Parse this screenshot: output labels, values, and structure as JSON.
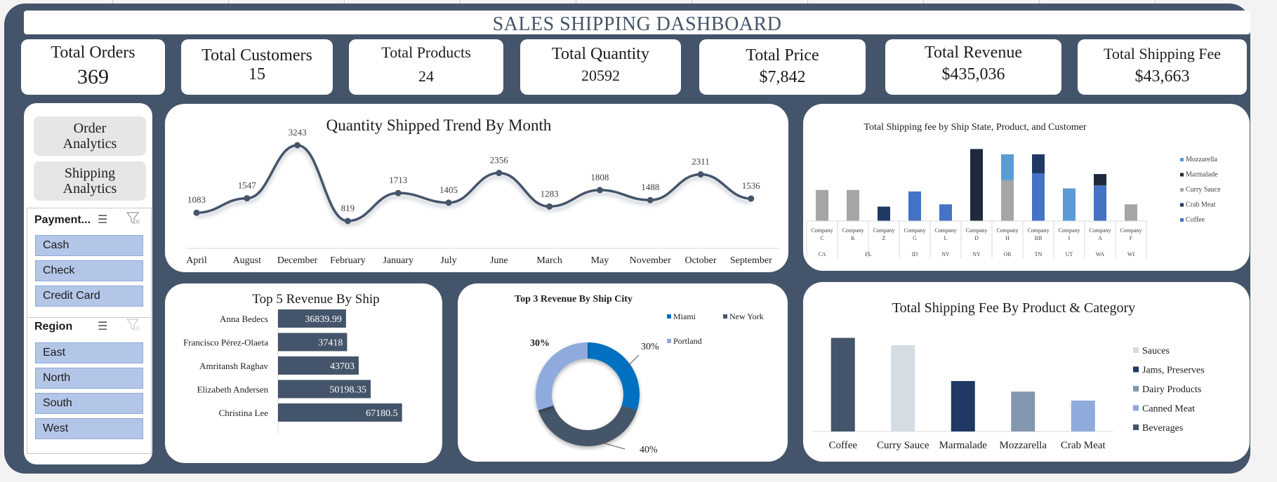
{
  "dashboard": {
    "title": "SALES SHIPPING DASHBOARD"
  },
  "kpis": [
    {
      "label": "Total Orders",
      "value": "369"
    },
    {
      "label": "Total Customers",
      "value": "15"
    },
    {
      "label": "Total Products",
      "value": "24"
    },
    {
      "label": "Total Quantity",
      "value": "20592"
    },
    {
      "label": "Total Price",
      "value": "$7,842"
    },
    {
      "label": "Total Revenue",
      "value": "$435,036"
    },
    {
      "label": "Total Shipping Fee",
      "value": "$43,663"
    }
  ],
  "nav": {
    "order_analytics": "Order Analytics",
    "shipping_analytics": "Shipping Analytics"
  },
  "slicers": {
    "payment": {
      "title": "Payment...",
      "items": [
        "Cash",
        "Check",
        "Credit Card"
      ]
    },
    "region": {
      "title": "Region",
      "items": [
        "East",
        "North",
        "South",
        "West"
      ]
    }
  },
  "colors": {
    "navy": "#44546a",
    "blue": "#4472c4",
    "light_blue": "#b4c6e7",
    "accent": "#0070c0"
  },
  "chart_data": [
    {
      "type": "line",
      "title": "Quantity Shipped Trend By Month",
      "categories": [
        "April",
        "August",
        "December",
        "February",
        "January",
        "July",
        "June",
        "March",
        "May",
        "November",
        "October",
        "September"
      ],
      "values": [
        1083,
        1547,
        3243,
        819,
        1713,
        1405,
        2356,
        1283,
        1808,
        1488,
        2311,
        1536
      ],
      "ylim": [
        0,
        3500
      ],
      "grid": false
    },
    {
      "type": "bar",
      "title": "Total Shipping fee by Ship State, Product, and Customer",
      "legend_position": "right",
      "series_colors": {
        "Mozzarella": "#5b9bd5",
        "Marmalade": "#1f2a3c",
        "Curry Sauce": "#a5a5a5",
        "Crab Meat": "#203864",
        "Coffee": "#4472c4"
      },
      "bars": [
        {
          "customer": "Company C",
          "state": "CA",
          "stack": [
            {
              "series": "Curry Sauce",
              "value": 41
            }
          ]
        },
        {
          "customer": "Company K",
          "state": "FL",
          "stack": [
            {
              "series": "Curry Sauce",
              "value": 41
            }
          ]
        },
        {
          "customer": "Company Z",
          "state": "FL",
          "stack": [
            {
              "series": "Crab Meat",
              "value": 19
            }
          ]
        },
        {
          "customer": "Company G",
          "state": "ID",
          "stack": [
            {
              "series": "Coffee",
              "value": 39
            }
          ]
        },
        {
          "customer": "Company L",
          "state": "NV",
          "stack": [
            {
              "series": "Coffee",
              "value": 22
            }
          ]
        },
        {
          "customer": "Company D",
          "state": "NY",
          "stack": [
            {
              "series": "Marmalade",
              "value": 95
            }
          ]
        },
        {
          "customer": "Company H",
          "state": "OR",
          "stack": [
            {
              "series": "Curry Sauce",
              "value": 54
            },
            {
              "series": "Mozzarella",
              "value": 34
            }
          ]
        },
        {
          "customer": "Company BB",
          "state": "TN",
          "stack": [
            {
              "series": "Coffee",
              "value": 63
            },
            {
              "series": "Crab Meat",
              "value": 25
            }
          ]
        },
        {
          "customer": "Company I",
          "state": "UT",
          "stack": [
            {
              "series": "Mozzarella",
              "value": 43
            }
          ]
        },
        {
          "customer": "Company A",
          "state": "WA",
          "stack": [
            {
              "series": "Coffee",
              "value": 47
            },
            {
              "series": "Marmalade",
              "value": 15
            }
          ]
        },
        {
          "customer": "Company F",
          "state": "WI",
          "stack": [
            {
              "series": "Curry Sauce",
              "value": 22
            }
          ]
        }
      ],
      "states": [
        "CA",
        "FL",
        "ID",
        "NV",
        "NY",
        "OR",
        "TN",
        "UT",
        "WA",
        "WI"
      ],
      "legend": [
        "Mozzarella",
        "Marmalade",
        "Curry Sauce",
        "Crab Meat",
        "Coffee"
      ]
    },
    {
      "type": "bar",
      "orientation": "horizontal",
      "title": "Top 5 Revenue By Ship",
      "categories": [
        "Anna Bedecs",
        "Francisco Pérez-Olaeta",
        "Amritansh Raghav",
        "Elizabeth Andersen",
        "Christina Lee"
      ],
      "values": [
        36839.99,
        37418,
        43703,
        50198.35,
        67180.5
      ],
      "labels": [
        "36839.99",
        "37418",
        "43703",
        "50198.35",
        "67180.5"
      ]
    },
    {
      "type": "pie",
      "title": "Top 3 Revenue By Ship City",
      "labels": [
        "Miami",
        "New York",
        "Portland"
      ],
      "values": [
        30,
        40,
        30
      ],
      "data_labels": [
        "30%",
        "40%",
        "30%"
      ],
      "colors": [
        "#0070c0",
        "#44546a",
        "#8faadc"
      ],
      "legend_position": "right"
    },
    {
      "type": "bar",
      "title": "Total Shipping Fee By Product & Category",
      "categories": [
        "Coffee",
        "Curry Sauce",
        "Marmalade",
        "Mozzarella",
        "Crab Meat"
      ],
      "values": [
        11.5,
        10.6,
        6.2,
        4.9,
        3.8
      ],
      "colors": [
        "#44546a",
        "#d6dce4",
        "#203864",
        "#8497b0",
        "#8faadc"
      ],
      "legend": [
        "Sauces",
        "Jams, Preserves",
        "Dairy Products",
        "Canned Meat",
        "Beverages"
      ],
      "legend_colors": [
        "#d6dce4",
        "#203864",
        "#8497b0",
        "#8faadc",
        "#44546a"
      ],
      "legend_position": "right"
    }
  ]
}
